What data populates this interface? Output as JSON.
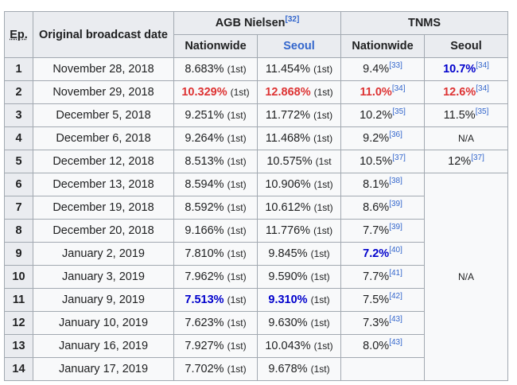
{
  "headers": {
    "episode_abbr": "Ep.",
    "date": "Original broadcast date",
    "agb": "AGB Nielsen",
    "agb_ref": "[32]",
    "tnms": "TNMS",
    "nationwide": "Nationwide",
    "seoul": "Seoul"
  },
  "na_text": "N/A",
  "rows": [
    {
      "ep": "1",
      "date": "November 28, 2018",
      "agb_nat": "8.683%",
      "agb_nat_rank": "(1st)",
      "agb_seoul": "11.454%",
      "agb_seoul_rank": "(1st)",
      "tnms_nat": "9.4%",
      "tnms_nat_ref": "[33]",
      "tnms_seoul": "10.7%",
      "tnms_seoul_ref": "[34]"
    },
    {
      "ep": "2",
      "date": "November 29, 2018",
      "agb_nat": "10.329%",
      "agb_nat_rank": "(1st)",
      "agb_seoul": "12.868%",
      "agb_seoul_rank": "(1st)",
      "tnms_nat": "11.0%",
      "tnms_nat_ref": "[34]",
      "tnms_seoul": "12.6%",
      "tnms_seoul_ref": "[34]"
    },
    {
      "ep": "3",
      "date": "December 5, 2018",
      "agb_nat": "9.251%",
      "agb_nat_rank": "(1st)",
      "agb_seoul": "11.772%",
      "agb_seoul_rank": "(1st)",
      "tnms_nat": "10.2%",
      "tnms_nat_ref": "[35]",
      "tnms_seoul": "11.5%",
      "tnms_seoul_ref": "[35]"
    },
    {
      "ep": "4",
      "date": "December 6, 2018",
      "agb_nat": "9.264%",
      "agb_nat_rank": "(1st)",
      "agb_seoul": "11.468%",
      "agb_seoul_rank": "(1st)",
      "tnms_nat": "9.2%",
      "tnms_nat_ref": "[36]"
    },
    {
      "ep": "5",
      "date": "December 12, 2018",
      "agb_nat": "8.513%",
      "agb_nat_rank": "(1st)",
      "agb_seoul": "10.575%",
      "agb_seoul_rank": "(1st",
      "tnms_nat": "10.5%",
      "tnms_nat_ref": "[37]",
      "tnms_seoul": "12%",
      "tnms_seoul_ref": "[37]"
    },
    {
      "ep": "6",
      "date": "December 13, 2018",
      "agb_nat": "8.594%",
      "agb_nat_rank": "(1st)",
      "agb_seoul": "10.906%",
      "agb_seoul_rank": "(1st)",
      "tnms_nat": "8.1%",
      "tnms_nat_ref": "[38]"
    },
    {
      "ep": "7",
      "date": "December 19, 2018",
      "agb_nat": "8.592%",
      "agb_nat_rank": "(1st)",
      "agb_seoul": "10.612%",
      "agb_seoul_rank": "(1st)",
      "tnms_nat": "8.6%",
      "tnms_nat_ref": "[39]"
    },
    {
      "ep": "8",
      "date": "December 20, 2018",
      "agb_nat": "9.166%",
      "agb_nat_rank": "(1st)",
      "agb_seoul": "11.776%",
      "agb_seoul_rank": "(1st)",
      "tnms_nat": "7.7%",
      "tnms_nat_ref": "[39]"
    },
    {
      "ep": "9",
      "date": "January 2, 2019",
      "agb_nat": "7.810%",
      "agb_nat_rank": "(1st)",
      "agb_seoul": "9.845%",
      "agb_seoul_rank": "(1st)",
      "tnms_nat": "7.2%",
      "tnms_nat_ref": "[40]"
    },
    {
      "ep": "10",
      "date": "January 3, 2019",
      "agb_nat": "7.962%",
      "agb_nat_rank": "(1st)",
      "agb_seoul": "9.590%",
      "agb_seoul_rank": "(1st)",
      "tnms_nat": "7.7%",
      "tnms_nat_ref": "[41]"
    },
    {
      "ep": "11",
      "date": "January 9, 2019",
      "agb_nat": "7.513%",
      "agb_nat_rank": "(1st)",
      "agb_seoul": "9.310%",
      "agb_seoul_rank": "(1st)",
      "tnms_nat": "7.5%",
      "tnms_nat_ref": "[42]"
    },
    {
      "ep": "12",
      "date": "January 10, 2019",
      "agb_nat": "7.623%",
      "agb_nat_rank": "(1st)",
      "agb_seoul": "9.630%",
      "agb_seoul_rank": "(1st)",
      "tnms_nat": "7.3%",
      "tnms_nat_ref": "[43]"
    },
    {
      "ep": "13",
      "date": "January 16, 2019",
      "agb_nat": "7.927%",
      "agb_nat_rank": "(1st)",
      "agb_seoul": "10.043%",
      "agb_seoul_rank": "(1st)",
      "tnms_nat": "8.0%",
      "tnms_nat_ref": "[43]"
    },
    {
      "ep": "14",
      "date": "January 17, 2019",
      "agb_nat": "7.702%",
      "agb_nat_rank": "(1st)",
      "agb_seoul": "9.678%",
      "agb_seoul_rank": "(1st)",
      "tnms_nat": "",
      "tnms_nat_ref": ""
    }
  ],
  "colors": {
    "highest": "#dd3333",
    "lowest": "#0000cc",
    "link": "#3366cc",
    "header_bg": "#eaecf0",
    "cell_bg": "#f8f9fa",
    "border": "#a2a9b1"
  }
}
